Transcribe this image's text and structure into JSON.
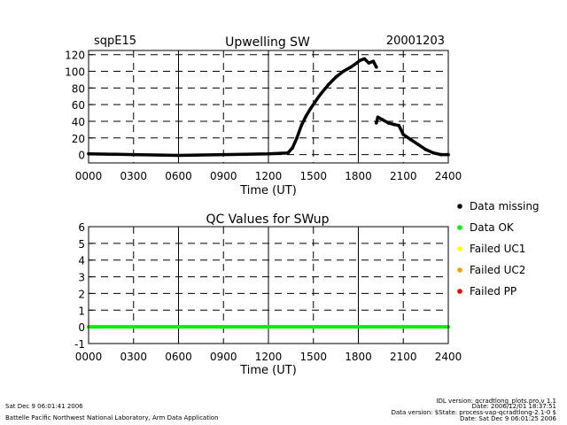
{
  "header": {
    "site": "sqpE15",
    "date": "20001203"
  },
  "chart_data": [
    {
      "type": "line",
      "title": "Upwelling SW",
      "xlabel": "Time (UT)",
      "ylabel": "",
      "xlim": [
        0,
        2400
      ],
      "ylim": [
        -10,
        125
      ],
      "x_ticks": [
        "0000",
        "0300",
        "0600",
        "0900",
        "1200",
        "1500",
        "1800",
        "2100",
        "2400"
      ],
      "y_ticks": [
        0,
        20,
        40,
        60,
        80,
        100,
        120
      ],
      "grid": true,
      "series": [
        {
          "color": "#000000",
          "segments": [
            [
              [
                0,
                1
              ],
              [
                300,
                0
              ],
              [
                600,
                -1
              ],
              [
                900,
                0
              ],
              [
                1200,
                1
              ],
              [
                1330,
                2
              ],
              [
                1360,
                8
              ],
              [
                1390,
                20
              ],
              [
                1420,
                35
              ],
              [
                1450,
                46
              ],
              [
                1480,
                55
              ],
              [
                1510,
                63
              ],
              [
                1550,
                73
              ],
              [
                1600,
                84
              ],
              [
                1650,
                93
              ],
              [
                1700,
                100
              ],
              [
                1750,
                105
              ],
              [
                1790,
                110
              ],
              [
                1810,
                113
              ],
              [
                1840,
                115
              ],
              [
                1870,
                110
              ],
              [
                1900,
                112
              ],
              [
                1920,
                105
              ]
            ],
            [
              [
                1920,
                38
              ],
              [
                1930,
                45
              ],
              [
                1960,
                42
              ],
              [
                2000,
                38
              ],
              [
                2040,
                36
              ],
              [
                2070,
                35
              ],
              [
                2100,
                24
              ],
              [
                2150,
                18
              ],
              [
                2200,
                12
              ],
              [
                2250,
                6
              ],
              [
                2300,
                2
              ],
              [
                2350,
                0
              ],
              [
                2400,
                0
              ]
            ]
          ]
        }
      ]
    },
    {
      "type": "line",
      "title": "QC Values for SWup",
      "xlabel": "Time (UT)",
      "ylabel": "",
      "xlim": [
        0,
        2400
      ],
      "ylim": [
        -1,
        6
      ],
      "x_ticks": [
        "0000",
        "0300",
        "0600",
        "0900",
        "1200",
        "1500",
        "1800",
        "2100",
        "2400"
      ],
      "y_ticks": [
        -1,
        0,
        1,
        2,
        3,
        4,
        5,
        6
      ],
      "grid": true,
      "series": [
        {
          "color": "#00ee00",
          "segments": [
            [
              [
                0,
                0
              ],
              [
                2400,
                0
              ]
            ]
          ]
        }
      ]
    }
  ],
  "legend": {
    "placement": "right",
    "items": [
      {
        "label": "Data missing",
        "color": "#000000"
      },
      {
        "label": "Data OK",
        "color": "#00ee00"
      },
      {
        "label": "Failed UC1",
        "color": "#ffff00"
      },
      {
        "label": "Failed UC2",
        "color": "#ff9900"
      },
      {
        "label": "Failed PP",
        "color": "#ee0000"
      }
    ]
  },
  "footer": {
    "timestamp": "Sat Dec  9 06:01:41 2006",
    "lab": "Battelle Pacific Northwest National Laboratory, Arm Data Application",
    "idl_version": "IDL version: qcradtlong_plots.pro,v 1.1",
    "idl_date": "Date: 2006/12/01 18:37:51",
    "data_version": "Data version: $State: process-vap-qcradtlong-2.1-0 $",
    "data_date": "Date: Sat Dec  9 06:01:25 2006"
  }
}
